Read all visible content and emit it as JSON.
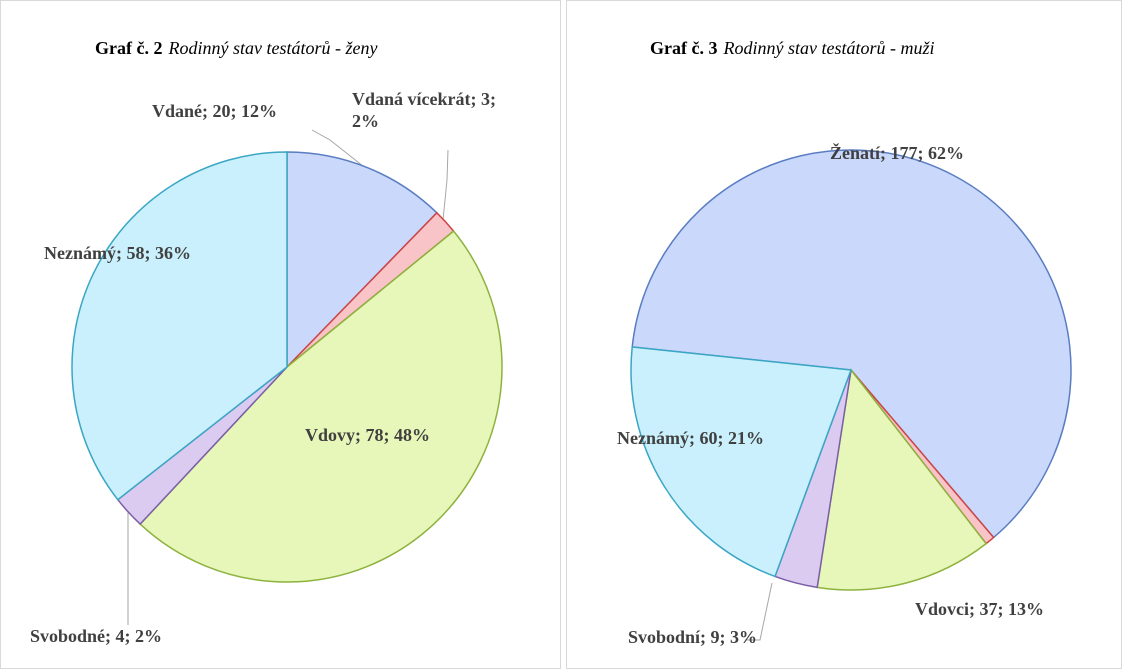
{
  "chart_data": [
    {
      "type": "pie",
      "title": "Graf č. 2",
      "subtitle": "Rodinný stav testátorů - ženy",
      "values": [
        20,
        3,
        78,
        4,
        58
      ],
      "value_labels": [
        "Vdané; 20; 12%",
        "Vdaná vícekrát; 3; 2%",
        "Vdovy; 78; 48%",
        "Svobodné; 4; 2%",
        "Neznámý; 58; 36%"
      ],
      "colors": [
        "#c9d8fb",
        "#f9c4c7",
        "#e7f7b9",
        "#dccbf0",
        "#c9f0fc"
      ],
      "start_angle": 0
    },
    {
      "type": "pie",
      "title": "Graf č. 3",
      "subtitle": "Rodinný stav testátorů - muži",
      "values": [
        177,
        2,
        37,
        9,
        60
      ],
      "value_labels": [
        "Ženatí; 177; 62%",
        null,
        "Vdovci; 37; 13%",
        "Svobodní; 9; 3%",
        "Neznámý; 60; 21%"
      ],
      "colors": [
        "#c9d8fb",
        "#f9c4c7",
        "#e7f7b9",
        "#dccbf0",
        "#c9f0fc"
      ],
      "start_angle": -84
    }
  ]
}
